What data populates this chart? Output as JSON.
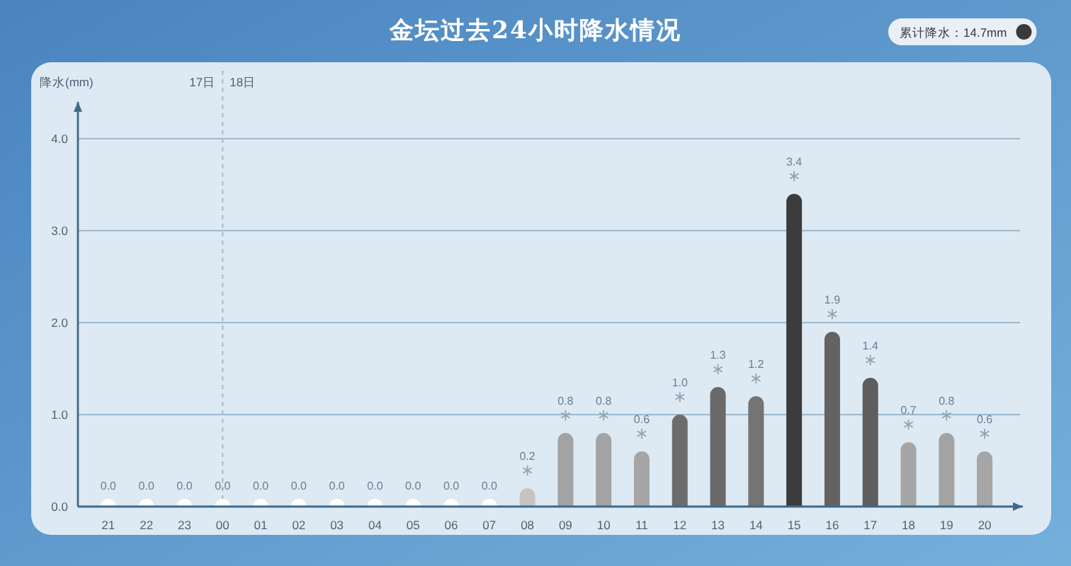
{
  "chart_data": {
    "type": "bar",
    "title": "金坛过去24小时降水情况",
    "ylabel": "降水(mm)",
    "categories": [
      "21",
      "22",
      "23",
      "00",
      "01",
      "02",
      "03",
      "04",
      "05",
      "06",
      "07",
      "08",
      "09",
      "10",
      "11",
      "12",
      "13",
      "14",
      "15",
      "16",
      "17",
      "18",
      "19",
      "20"
    ],
    "values": [
      0,
      0,
      0,
      0,
      0,
      0,
      0,
      0,
      0,
      0,
      0,
      0.2,
      0.8,
      0.8,
      0.6,
      1.0,
      1.3,
      1.2,
      3.4,
      1.9,
      1.4,
      0.7,
      0.8,
      0.6
    ],
    "value_labels": [
      "0.0",
      "0.0",
      "0.0",
      "0.0",
      "0.0",
      "0.0",
      "0.0",
      "0.0",
      "0.0",
      "0.0",
      "0.0",
      "0.2",
      "0.8",
      "0.8",
      "0.6",
      "1.0",
      "1.3",
      "1.2",
      "3.4",
      "1.9",
      "1.4",
      "0.7",
      "0.8",
      "0.6"
    ],
    "colors": [
      "#ffffff",
      "#ffffff",
      "#ffffff",
      "#ffffff",
      "#ffffff",
      "#ffffff",
      "#ffffff",
      "#ffffff",
      "#ffffff",
      "#ffffff",
      "#ffffff",
      "#c4c4c4",
      "#a3a3a3",
      "#a3a3a3",
      "#a6a6a6",
      "#6c6c6c",
      "#6a6a6a",
      "#747474",
      "#3c3c3c",
      "#636363",
      "#5e5e5e",
      "#a6a6a6",
      "#a3a3a3",
      "#a6a6a6"
    ],
    "ylim": [
      0,
      4.4
    ],
    "yticks": [
      {
        "value": 0,
        "label": "0.0"
      },
      {
        "value": 1,
        "label": "1.0"
      },
      {
        "value": 2,
        "label": "2.0"
      },
      {
        "value": 3,
        "label": "3.0"
      },
      {
        "value": 4,
        "label": "4.0"
      }
    ],
    "grid": "y",
    "ref_lines": [
      {
        "axis": "x",
        "value": "00",
        "label": "18日",
        "line_style": "dashed",
        "color": "#a9b8c6"
      }
    ],
    "annotations": [
      "17日",
      "累计降水：14.7mm"
    ]
  }
}
